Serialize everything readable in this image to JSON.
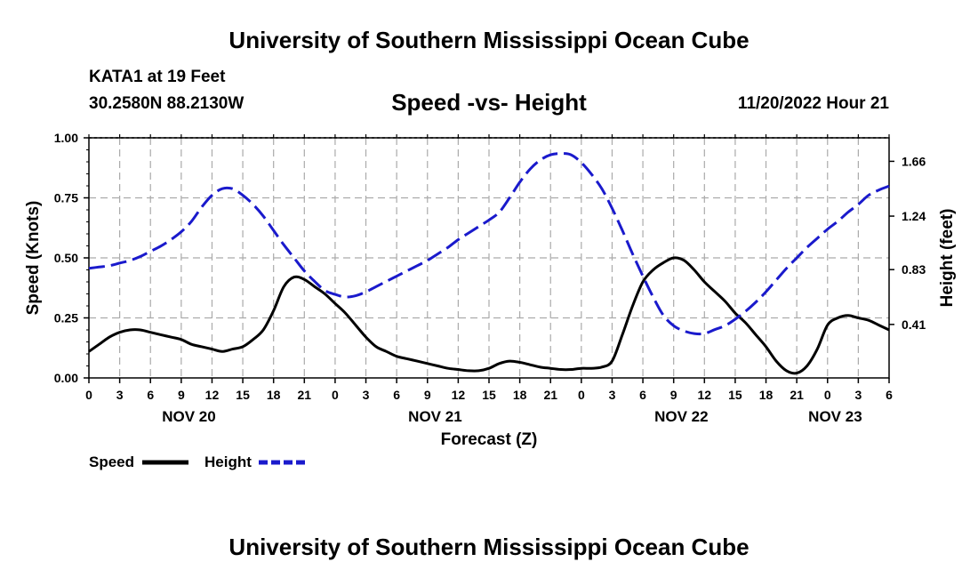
{
  "header": {
    "title": "University of Southern Mississippi Ocean Cube",
    "station": "KATA1 at 19 Feet",
    "coords": "30.2580N  88.2130W",
    "subtitle": "Speed -vs- Height",
    "date": "11/20/2022 Hour 21"
  },
  "footer": {
    "title": "University of Southern Mississippi Ocean Cube"
  },
  "colors": {
    "speed": "#000000",
    "height": "#1a1acc",
    "grid": "#aaaaaa"
  },
  "chart_data": {
    "type": "line",
    "xlabel": "Forecast (Z)",
    "ylabel_left": "Speed (Knots)",
    "ylabel_right": "Height (feet)",
    "x_range": [
      0,
      78
    ],
    "y_left_range": [
      0,
      1
    ],
    "y_right_range": [
      0,
      1.84
    ],
    "x_ticks": [
      "0",
      "3",
      "6",
      "9",
      "12",
      "15",
      "18",
      "21",
      "0",
      "3",
      "6",
      "9",
      "12",
      "15",
      "18",
      "21",
      "0",
      "3",
      "6",
      "9",
      "12",
      "15",
      "18",
      "21",
      "0",
      "3",
      "6"
    ],
    "day_labels": [
      {
        "label": "NOV 20",
        "x": 9.75
      },
      {
        "label": "NOV 21",
        "x": 33.75
      },
      {
        "label": "NOV 22",
        "x": 57.75
      },
      {
        "label": "NOV 23",
        "x": 72.75
      }
    ],
    "y_left_ticks": [
      "0.00",
      "0.25",
      "0.50",
      "0.75",
      "1.00"
    ],
    "y_right_ticks": [
      {
        "label": "0.41",
        "value": 0.41
      },
      {
        "label": "0.83",
        "value": 0.83
      },
      {
        "label": "1.24",
        "value": 1.24
      },
      {
        "label": "1.66",
        "value": 1.66
      }
    ],
    "series": [
      {
        "name": "Speed",
        "axis": "left",
        "style": "solid",
        "x": [
          0,
          1,
          2,
          3,
          4,
          5,
          6,
          7,
          8,
          9,
          10,
          11,
          12,
          13,
          14,
          15,
          16,
          17,
          18,
          19,
          20,
          21,
          22,
          23,
          24,
          25,
          26,
          27,
          28,
          29,
          30,
          31,
          32,
          33,
          34,
          35,
          36,
          37,
          38,
          39,
          40,
          41,
          42,
          43,
          44,
          45,
          46,
          47,
          48,
          49,
          50,
          51,
          52,
          53,
          54,
          55,
          56,
          57,
          58,
          59,
          60,
          61,
          62,
          63,
          64,
          65,
          66,
          67,
          68,
          69,
          70,
          71,
          72,
          73,
          74,
          75,
          76,
          77,
          78
        ],
        "values": [
          0.11,
          0.14,
          0.17,
          0.19,
          0.2,
          0.2,
          0.19,
          0.18,
          0.17,
          0.16,
          0.14,
          0.13,
          0.12,
          0.11,
          0.12,
          0.13,
          0.16,
          0.2,
          0.28,
          0.38,
          0.42,
          0.41,
          0.38,
          0.35,
          0.31,
          0.27,
          0.22,
          0.17,
          0.13,
          0.11,
          0.09,
          0.08,
          0.07,
          0.06,
          0.05,
          0.04,
          0.035,
          0.03,
          0.03,
          0.04,
          0.06,
          0.07,
          0.065,
          0.055,
          0.045,
          0.04,
          0.035,
          0.035,
          0.04,
          0.04,
          0.045,
          0.07,
          0.18,
          0.3,
          0.4,
          0.45,
          0.48,
          0.5,
          0.49,
          0.45,
          0.4,
          0.36,
          0.32,
          0.27,
          0.23,
          0.18,
          0.13,
          0.07,
          0.03,
          0.02,
          0.05,
          0.12,
          0.22,
          0.25,
          0.26,
          0.25,
          0.24,
          0.22,
          0.2
        ]
      },
      {
        "name": "Height",
        "axis": "right",
        "style": "dashed",
        "x": [
          0,
          1,
          2,
          3,
          4,
          5,
          6,
          7,
          8,
          9,
          10,
          11,
          12,
          13,
          14,
          15,
          16,
          17,
          18,
          19,
          20,
          21,
          22,
          23,
          24,
          25,
          26,
          27,
          28,
          29,
          30,
          31,
          32,
          33,
          34,
          35,
          36,
          37,
          38,
          39,
          40,
          41,
          42,
          43,
          44,
          45,
          46,
          47,
          48,
          49,
          50,
          51,
          52,
          53,
          54,
          55,
          56,
          57,
          58,
          59,
          60,
          61,
          62,
          63,
          64,
          65,
          66,
          67,
          68,
          69,
          70,
          71,
          72,
          73,
          74,
          75,
          76,
          77,
          78
        ],
        "values": [
          0.84,
          0.85,
          0.86,
          0.88,
          0.9,
          0.93,
          0.97,
          1.01,
          1.06,
          1.12,
          1.2,
          1.31,
          1.4,
          1.45,
          1.45,
          1.4,
          1.33,
          1.24,
          1.13,
          1.02,
          0.92,
          0.82,
          0.74,
          0.67,
          0.64,
          0.62,
          0.63,
          0.66,
          0.7,
          0.74,
          0.78,
          0.82,
          0.86,
          0.9,
          0.95,
          1.0,
          1.06,
          1.11,
          1.16,
          1.21,
          1.27,
          1.38,
          1.5,
          1.6,
          1.67,
          1.71,
          1.72,
          1.71,
          1.65,
          1.56,
          1.45,
          1.3,
          1.13,
          0.95,
          0.78,
          0.62,
          0.48,
          0.4,
          0.36,
          0.34,
          0.34,
          0.37,
          0.4,
          0.45,
          0.51,
          0.58,
          0.66,
          0.75,
          0.84,
          0.92,
          1.0,
          1.07,
          1.14,
          1.2,
          1.27,
          1.33,
          1.4,
          1.44,
          1.47
        ]
      }
    ],
    "legend": [
      {
        "label": "Speed",
        "series": "Speed"
      },
      {
        "label": "Height",
        "series": "Height"
      }
    ]
  }
}
